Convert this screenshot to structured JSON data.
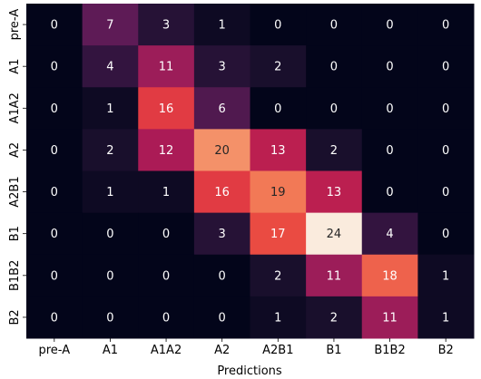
{
  "chart_data": {
    "type": "heatmap",
    "title": "",
    "xlabel": "Predictions",
    "ylabel": "",
    "x_categories": [
      "pre-A",
      "A1",
      "A1A2",
      "A2",
      "A2B1",
      "B1",
      "B1B2",
      "B2"
    ],
    "y_categories": [
      "pre-A",
      "A1",
      "A1A2",
      "A2",
      "A2B1",
      "B1",
      "B1B2",
      "B2"
    ],
    "values": [
      [
        0,
        7,
        3,
        1,
        0,
        0,
        0,
        0
      ],
      [
        0,
        4,
        11,
        3,
        2,
        0,
        0,
        0
      ],
      [
        0,
        1,
        16,
        6,
        0,
        0,
        0,
        0
      ],
      [
        0,
        2,
        12,
        20,
        13,
        2,
        0,
        0
      ],
      [
        0,
        1,
        1,
        16,
        19,
        13,
        0,
        0
      ],
      [
        0,
        0,
        0,
        3,
        17,
        24,
        4,
        0
      ],
      [
        0,
        0,
        0,
        0,
        2,
        11,
        18,
        1
      ],
      [
        0,
        0,
        0,
        0,
        1,
        2,
        11,
        1
      ]
    ],
    "vmin": 0,
    "vmax": 24,
    "colormap": "rocket",
    "colorbar": false,
    "annotations": true
  }
}
